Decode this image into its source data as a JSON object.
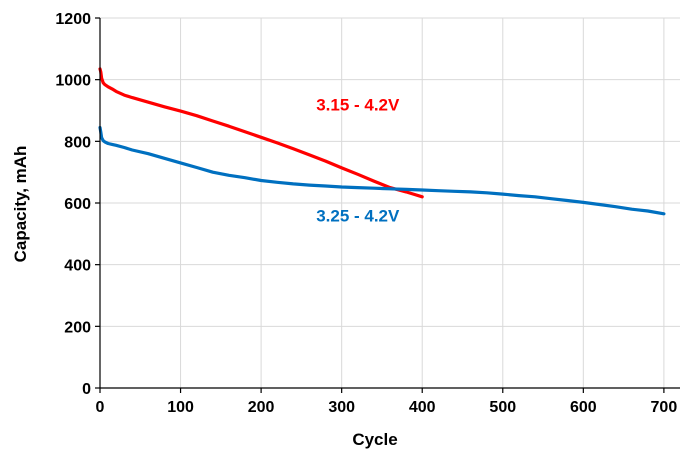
{
  "chart_data": {
    "type": "line",
    "xlabel": "Cycle",
    "ylabel": "Capacity, mAh",
    "xlim": [
      0,
      720
    ],
    "ylim": [
      0,
      1200
    ],
    "x_ticks": [
      0,
      100,
      200,
      300,
      400,
      500,
      600,
      700
    ],
    "y_ticks": [
      0,
      200,
      400,
      600,
      800,
      1000,
      1200
    ],
    "grid": "vertical and horizontal",
    "series": [
      {
        "name": "3.15 - 4.2V",
        "color": "#ff0000",
        "x": [
          0,
          1,
          2,
          4,
          6,
          10,
          15,
          20,
          30,
          40,
          60,
          80,
          100,
          120,
          140,
          160,
          180,
          200,
          220,
          240,
          260,
          280,
          300,
          320,
          340,
          360,
          380,
          390,
          400
        ],
        "y": [
          1035,
          1025,
          1005,
          990,
          984,
          977,
          970,
          962,
          950,
          942,
          927,
          912,
          898,
          883,
          866,
          849,
          831,
          813,
          795,
          776,
          756,
          736,
          714,
          693,
          671,
          650,
          636,
          628,
          620
        ]
      },
      {
        "name": "3.25 - 4.2V",
        "color": "#0070c0",
        "x": [
          0,
          1,
          2,
          4,
          6,
          10,
          15,
          20,
          30,
          40,
          60,
          80,
          100,
          120,
          140,
          160,
          180,
          200,
          220,
          240,
          260,
          280,
          300,
          320,
          340,
          360,
          380,
          400,
          420,
          440,
          460,
          480,
          500,
          520,
          540,
          560,
          580,
          600,
          620,
          640,
          660,
          680,
          700
        ],
        "y": [
          845,
          830,
          812,
          802,
          798,
          793,
          790,
          787,
          780,
          772,
          760,
          745,
          730,
          715,
          700,
          690,
          682,
          673,
          667,
          662,
          658,
          655,
          652,
          650,
          648,
          646,
          644,
          642,
          640,
          638,
          636,
          633,
          629,
          624,
          620,
          614,
          608,
          602,
          595,
          588,
          580,
          574,
          565
        ]
      }
    ],
    "annotations": [
      {
        "text": "3.15 - 4.2V",
        "x": 320,
        "y": 920,
        "color": "#ff0000"
      },
      {
        "text": "3.25 - 4.2V",
        "x": 320,
        "y": 560,
        "color": "#0070c0"
      }
    ]
  }
}
